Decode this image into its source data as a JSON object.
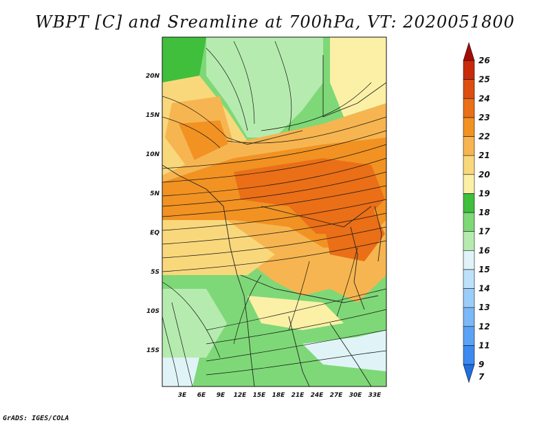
{
  "title": "WBPT [C] and Sreamline at 700hPa, VT: 2020051800",
  "credit": "GrADS: IGES/COLA",
  "map": {
    "lat_labels": [
      "20N",
      "15N",
      "10N",
      "5N",
      "EQ",
      "5S",
      "10S",
      "15S"
    ],
    "lon_labels": [
      "3E",
      "6E",
      "9E",
      "12E",
      "15E",
      "18E",
      "21E",
      "24E",
      "27E",
      "30E",
      "33E"
    ]
  },
  "colorbar": {
    "labels": [
      "7",
      "9",
      "11",
      "12",
      "13",
      "14",
      "15",
      "16",
      "17",
      "18",
      "19",
      "20",
      "21",
      "22",
      "23",
      "24",
      "25",
      "26"
    ],
    "colors": [
      "#1e6fe0",
      "#3c8af0",
      "#5aa2f5",
      "#7ab8f7",
      "#9bcdf9",
      "#bde0fb",
      "#e0f4f7",
      "#b6ebb0",
      "#7ed877",
      "#3fbf3c",
      "#fbf0a6",
      "#f9d87c",
      "#f6b550",
      "#f19222",
      "#ea6f17",
      "#dd4d10",
      "#c8290b",
      "#a40c06"
    ]
  },
  "colors": {
    "text": "#111111"
  }
}
